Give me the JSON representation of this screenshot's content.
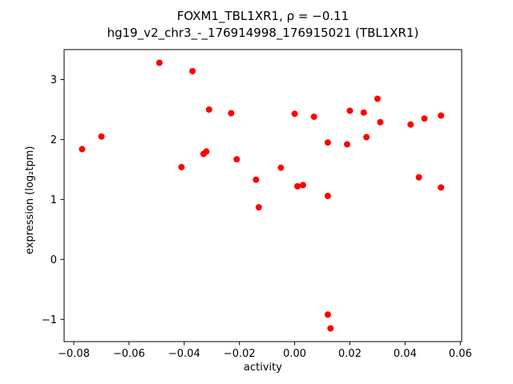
{
  "chart_data": {
    "type": "scatter",
    "title_line1": "FOXM1_TBL1XR1, ρ = −0.11",
    "title_line2": "hg19_v2_chr3_-_176914998_176915021 (TBL1XR1)",
    "xlabel": "activity",
    "ylabel": "expression (log₂tpm)",
    "marker_color": "#ff0000",
    "marker_radius": 4,
    "xlim": [
      -0.0835,
      0.0605
    ],
    "ylim": [
      -1.37,
      3.5
    ],
    "xticks": [
      -0.08,
      -0.06,
      -0.04,
      -0.02,
      0.0,
      0.02,
      0.04,
      0.06
    ],
    "xtick_labels": [
      "−0.08",
      "−0.06",
      "−0.04",
      "−0.02",
      "0.00",
      "0.02",
      "0.04",
      "0.06"
    ],
    "yticks": [
      -1,
      0,
      1,
      2,
      3
    ],
    "ytick_labels": [
      "−1",
      "0",
      "1",
      "2",
      "3"
    ],
    "grid": false,
    "legend": null,
    "x": [
      -0.077,
      -0.07,
      -0.049,
      -0.041,
      -0.037,
      -0.033,
      -0.032,
      -0.031,
      -0.023,
      -0.021,
      -0.014,
      -0.013,
      -0.005,
      0.0,
      0.001,
      0.003,
      0.007,
      0.012,
      0.012,
      0.012,
      0.013,
      0.019,
      0.02,
      0.025,
      0.026,
      0.03,
      0.031,
      0.042,
      0.045,
      0.047,
      0.053,
      0.053
    ],
    "y": [
      1.84,
      2.05,
      3.28,
      1.54,
      3.14,
      1.76,
      1.8,
      2.5,
      2.44,
      1.67,
      1.33,
      0.87,
      1.53,
      2.43,
      1.22,
      1.24,
      2.38,
      1.95,
      1.06,
      -0.92,
      -1.15,
      1.92,
      2.48,
      2.45,
      2.04,
      2.68,
      2.29,
      2.25,
      1.37,
      2.35,
      2.4,
      1.2
    ]
  }
}
